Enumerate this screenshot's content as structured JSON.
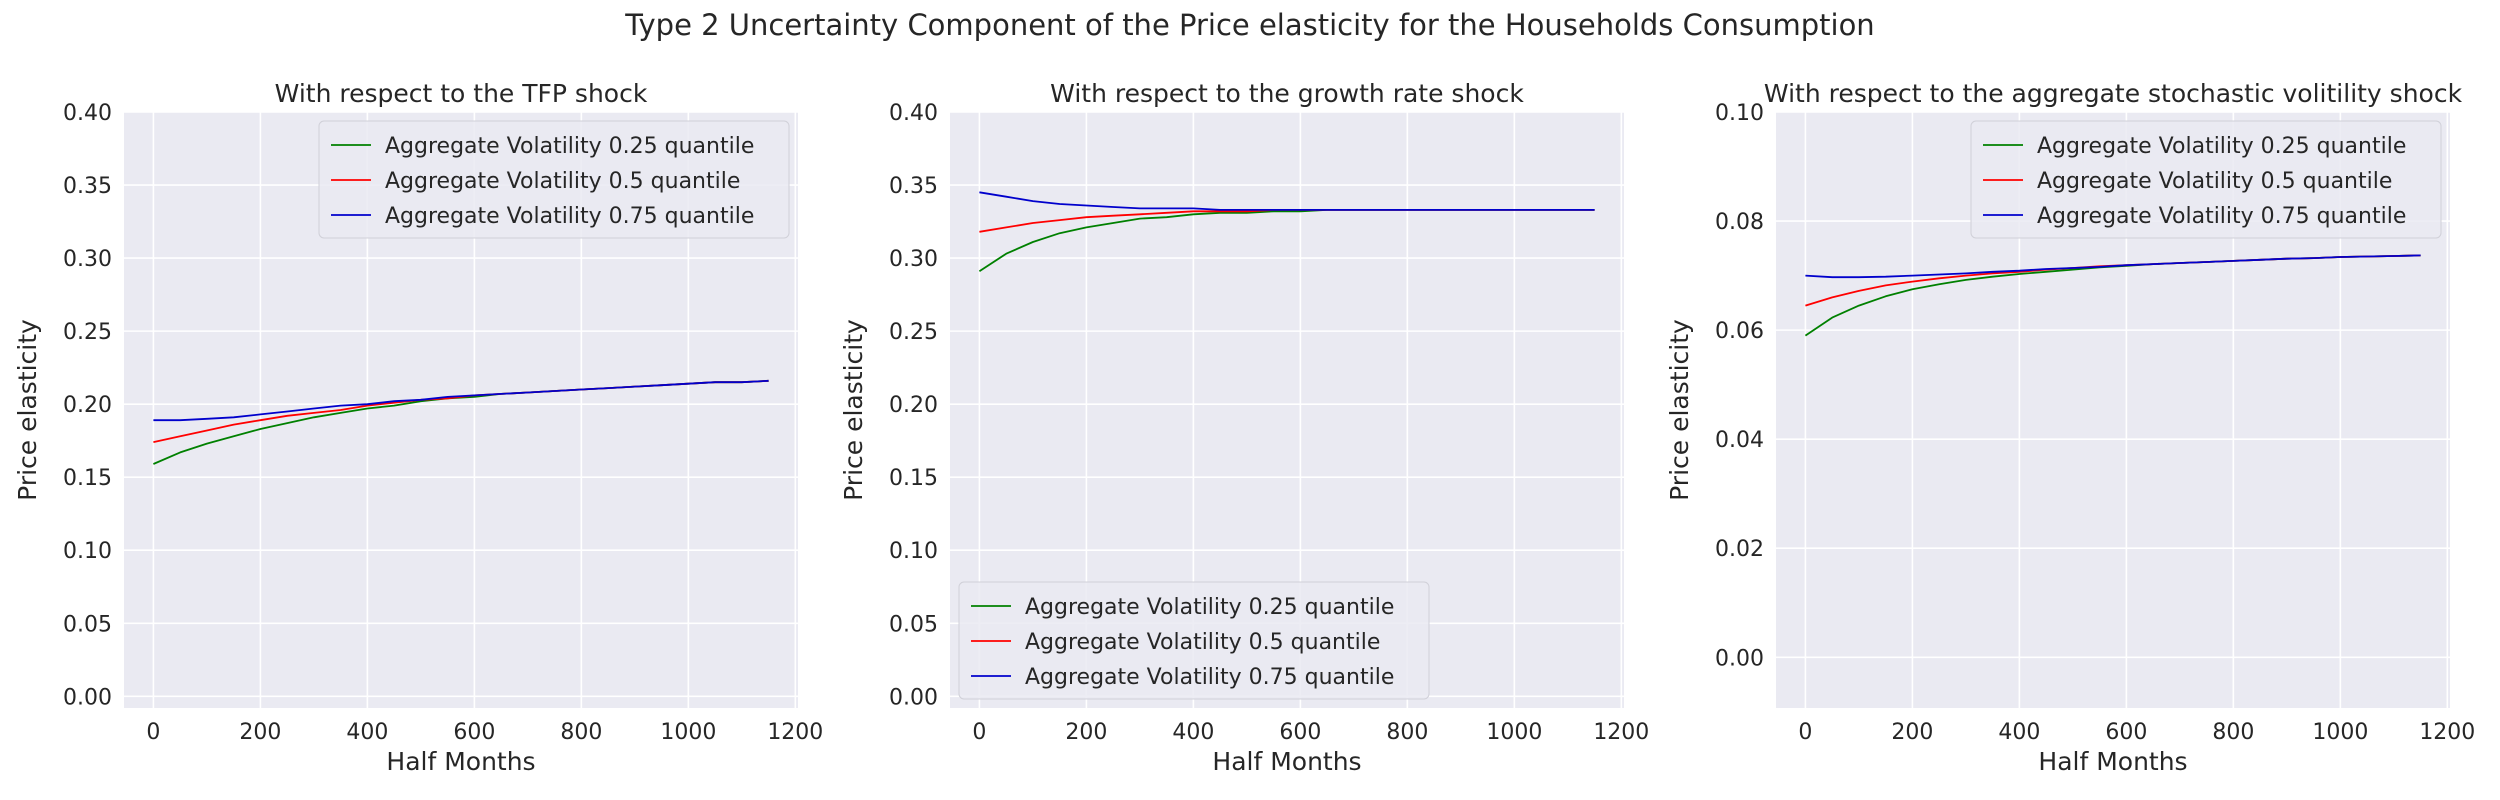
{
  "figure": {
    "title": "Type 2 Uncertainty Component of the Price elasticity for the Households Consumption",
    "background": "#ffffff",
    "axes_facecolor": "#eaeaf2",
    "grid_color": "#ffffff"
  },
  "chart_data": [
    {
      "type": "line",
      "title": "With respect to the TFP shock",
      "xlabel": "Half Months",
      "ylabel": "Price elasticity",
      "xlim": [
        -55,
        1205
      ],
      "ylim": [
        -0.008,
        0.4
      ],
      "xticks": [
        0,
        200,
        400,
        600,
        800,
        1000,
        1200
      ],
      "yticks": [
        0.0,
        0.05,
        0.1,
        0.15,
        0.2,
        0.25,
        0.3,
        0.35,
        0.4
      ],
      "ytick_decimals": 2,
      "grid": true,
      "legend_position": "upper right",
      "x": [
        0,
        50,
        100,
        150,
        200,
        250,
        300,
        350,
        400,
        450,
        500,
        550,
        600,
        650,
        700,
        750,
        800,
        850,
        900,
        950,
        1000,
        1050,
        1100,
        1150
      ],
      "series": [
        {
          "name": "Aggregate Volatility 0.25 quantile",
          "color": "#008000",
          "values": [
            0.159,
            0.167,
            0.173,
            0.178,
            0.183,
            0.187,
            0.191,
            0.194,
            0.197,
            0.199,
            0.202,
            0.204,
            0.205,
            0.207,
            0.208,
            0.209,
            0.21,
            0.211,
            0.212,
            0.213,
            0.214,
            0.215,
            0.215,
            0.216
          ]
        },
        {
          "name": "Aggregate Volatility 0.5 quantile",
          "color": "#ff0000",
          "values": [
            0.174,
            0.178,
            0.182,
            0.186,
            0.189,
            0.192,
            0.194,
            0.196,
            0.199,
            0.201,
            0.203,
            0.204,
            0.206,
            0.207,
            0.208,
            0.209,
            0.21,
            0.211,
            0.212,
            0.213,
            0.214,
            0.215,
            0.215,
            0.216
          ]
        },
        {
          "name": "Aggregate Volatility 0.75 quantile",
          "color": "#0000cc",
          "values": [
            0.189,
            0.189,
            0.19,
            0.191,
            0.193,
            0.195,
            0.197,
            0.199,
            0.2,
            0.202,
            0.203,
            0.205,
            0.206,
            0.207,
            0.208,
            0.209,
            0.21,
            0.211,
            0.212,
            0.213,
            0.214,
            0.215,
            0.215,
            0.216
          ]
        }
      ]
    },
    {
      "type": "line",
      "title": "With respect to the growth rate shock",
      "xlabel": "Half Months",
      "ylabel": "Price elasticity",
      "xlim": [
        -55,
        1205
      ],
      "ylim": [
        -0.008,
        0.4
      ],
      "xticks": [
        0,
        200,
        400,
        600,
        800,
        1000,
        1200
      ],
      "yticks": [
        0.0,
        0.05,
        0.1,
        0.15,
        0.2,
        0.25,
        0.3,
        0.35,
        0.4
      ],
      "ytick_decimals": 2,
      "grid": true,
      "legend_position": "lower left",
      "x": [
        0,
        50,
        100,
        150,
        200,
        250,
        300,
        350,
        400,
        450,
        500,
        550,
        600,
        650,
        700,
        750,
        800,
        850,
        900,
        950,
        1000,
        1050,
        1100,
        1150
      ],
      "series": [
        {
          "name": "Aggregate Volatility 0.25 quantile",
          "color": "#008000",
          "values": [
            0.291,
            0.303,
            0.311,
            0.317,
            0.321,
            0.324,
            0.327,
            0.328,
            0.33,
            0.331,
            0.331,
            0.332,
            0.332,
            0.333,
            0.333,
            0.333,
            0.333,
            0.333,
            0.333,
            0.333,
            0.333,
            0.333,
            0.333,
            0.333
          ]
        },
        {
          "name": "Aggregate Volatility 0.5 quantile",
          "color": "#ff0000",
          "values": [
            0.318,
            0.321,
            0.324,
            0.326,
            0.328,
            0.329,
            0.33,
            0.331,
            0.332,
            0.332,
            0.332,
            0.333,
            0.333,
            0.333,
            0.333,
            0.333,
            0.333,
            0.333,
            0.333,
            0.333,
            0.333,
            0.333,
            0.333,
            0.333
          ]
        },
        {
          "name": "Aggregate Volatility 0.75 quantile",
          "color": "#0000cc",
          "values": [
            0.345,
            0.342,
            0.339,
            0.337,
            0.336,
            0.335,
            0.334,
            0.334,
            0.334,
            0.333,
            0.333,
            0.333,
            0.333,
            0.333,
            0.333,
            0.333,
            0.333,
            0.333,
            0.333,
            0.333,
            0.333,
            0.333,
            0.333,
            0.333
          ]
        }
      ]
    },
    {
      "type": "line",
      "title": "With respect to the aggregate stochastic volitility shock",
      "xlabel": "Half Months",
      "ylabel": "Price elasticity",
      "xlim": [
        -55,
        1205
      ],
      "ylim": [
        -0.0093,
        0.1
      ],
      "xticks": [
        0,
        200,
        400,
        600,
        800,
        1000,
        1200
      ],
      "yticks": [
        0.0,
        0.02,
        0.04,
        0.06,
        0.08,
        0.1
      ],
      "ytick_decimals": 2,
      "grid": true,
      "legend_position": "upper right",
      "x": [
        0,
        50,
        100,
        150,
        200,
        250,
        300,
        350,
        400,
        450,
        500,
        550,
        600,
        650,
        700,
        750,
        800,
        850,
        900,
        950,
        1000,
        1050,
        1100,
        1150
      ],
      "series": [
        {
          "name": "Aggregate Volatility 0.25 quantile",
          "color": "#008000",
          "values": [
            0.059,
            0.0623,
            0.0645,
            0.0662,
            0.0675,
            0.0684,
            0.0692,
            0.0698,
            0.0703,
            0.0707,
            0.0711,
            0.0715,
            0.0718,
            0.0721,
            0.0723,
            0.0725,
            0.0727,
            0.0729,
            0.0731,
            0.0732,
            0.0734,
            0.0735,
            0.0736,
            0.0737
          ]
        },
        {
          "name": "Aggregate Volatility 0.5 quantile",
          "color": "#ff0000",
          "values": [
            0.0645,
            0.066,
            0.0672,
            0.0682,
            0.0689,
            0.0695,
            0.07,
            0.0704,
            0.0707,
            0.0711,
            0.0714,
            0.0717,
            0.0719,
            0.0721,
            0.0723,
            0.0725,
            0.0727,
            0.0729,
            0.0731,
            0.0732,
            0.0734,
            0.0735,
            0.0736,
            0.0737
          ]
        },
        {
          "name": "Aggregate Volatility 0.75 quantile",
          "color": "#0000cc",
          "values": [
            0.07,
            0.0697,
            0.0697,
            0.0698,
            0.07,
            0.0702,
            0.0704,
            0.0707,
            0.0709,
            0.0712,
            0.0714,
            0.0716,
            0.0719,
            0.0721,
            0.0723,
            0.0725,
            0.0727,
            0.0729,
            0.0731,
            0.0732,
            0.0734,
            0.0735,
            0.0736,
            0.0737
          ]
        }
      ]
    }
  ]
}
